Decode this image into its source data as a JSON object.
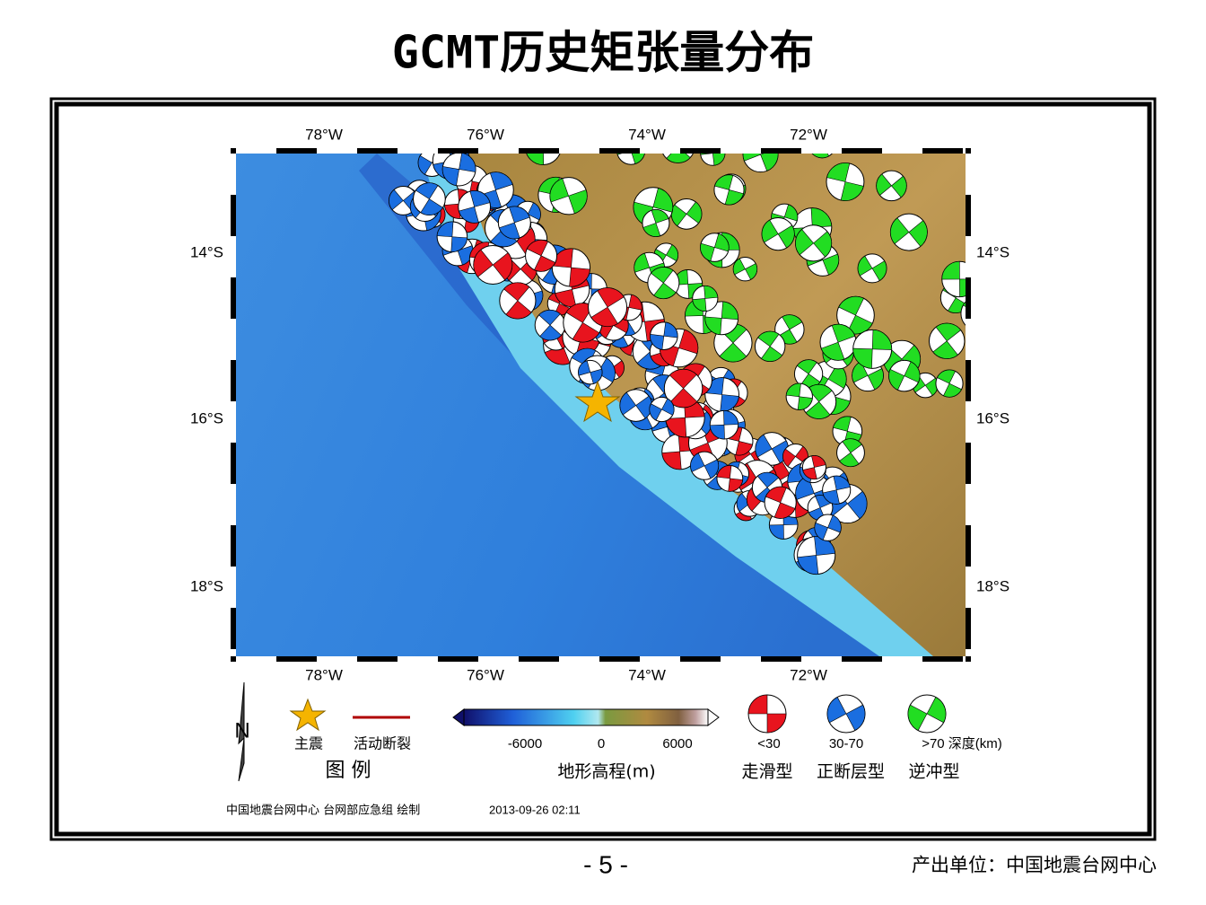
{
  "header": {
    "title": "GCMT历史矩张量分布"
  },
  "map": {
    "lon_labels": [
      "78°W",
      "76°W",
      "74°W",
      "72°W"
    ],
    "lat_labels": [
      "14°S",
      "16°S",
      "18°S"
    ]
  },
  "legend": {
    "heading": "图 例",
    "north": "N",
    "items": [
      {
        "label": "主震"
      },
      {
        "label": "活动断裂"
      }
    ],
    "colorbar": {
      "ticks": [
        "-6000",
        "0",
        "6000"
      ],
      "title": "地形高程(m)"
    },
    "mechanisms": [
      {
        "depth": "<30",
        "type": "走滑型"
      },
      {
        "depth": "30-70",
        "type": "正断层型"
      },
      {
        "depth": ">70 深度(km)",
        "type": "逆冲型"
      }
    ]
  },
  "credit": {
    "author": "中国地震台网中心 台网部应急组 绘制",
    "time": "2013-09-26 02:11"
  },
  "footer": {
    "page": "- 5 -",
    "producer": "产出单位：中国地震台网中心"
  }
}
